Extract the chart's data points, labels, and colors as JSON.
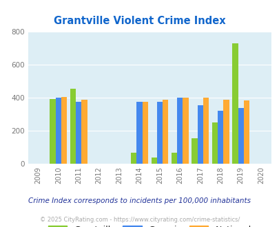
{
  "title": "Grantville Violent Crime Index",
  "subtitle": "Crime Index corresponds to incidents per 100,000 inhabitants",
  "footer": "© 2025 CityRating.com - https://www.cityrating.com/crime-statistics/",
  "all_years": [
    2009,
    2010,
    2011,
    2012,
    2013,
    2014,
    2015,
    2016,
    2017,
    2018,
    2019,
    2020
  ],
  "data_years": [
    2010,
    2011,
    2014,
    2015,
    2016,
    2017,
    2018,
    2019
  ],
  "grantville": [
    390,
    455,
    65,
    35,
    65,
    155,
    250,
    730
  ],
  "georgia": [
    400,
    375,
    375,
    375,
    398,
    355,
    320,
    335
  ],
  "national": [
    403,
    388,
    375,
    385,
    398,
    398,
    385,
    382
  ],
  "color_grantville": "#88cc33",
  "color_georgia": "#4488ee",
  "color_national": "#ffaa33",
  "bg_color": "#ddeef5",
  "title_color": "#1166cc",
  "subtitle_color": "#223399",
  "footer_color": "#aaaaaa",
  "ylim": [
    0,
    800
  ],
  "yticks": [
    0,
    200,
    400,
    600,
    800
  ],
  "bar_width": 0.28
}
